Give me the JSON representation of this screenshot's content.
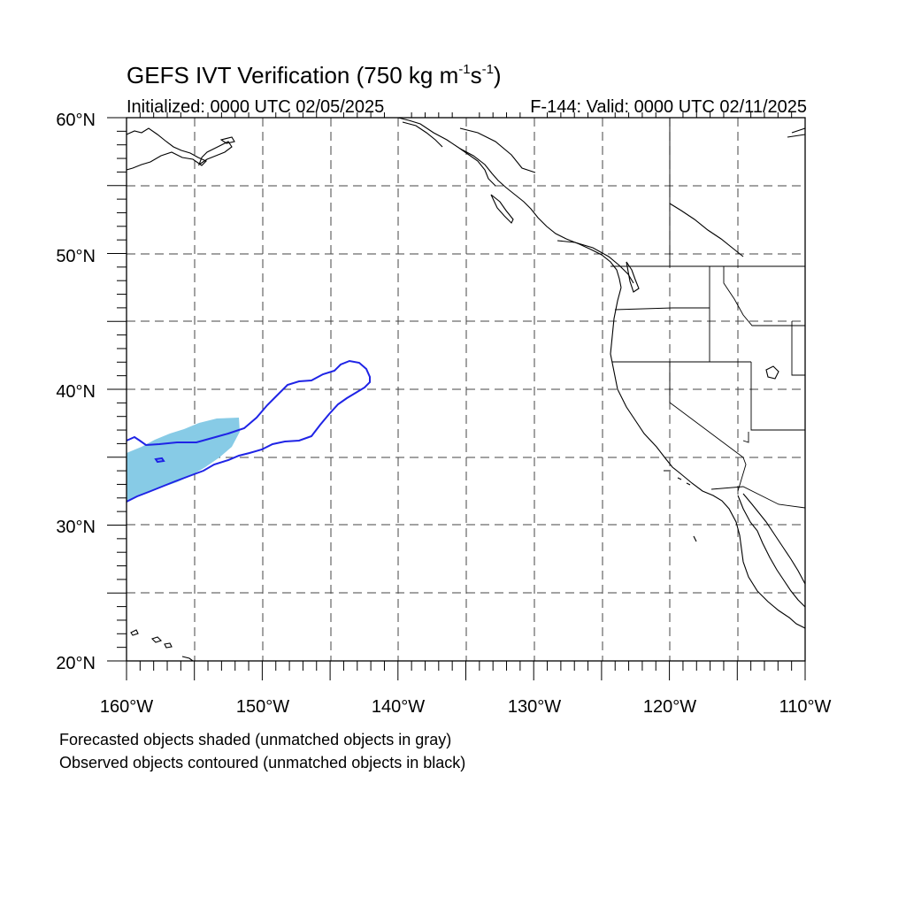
{
  "header": {
    "title_main": "GEFS IVT Verification (750 kg m",
    "title_sup1": "-1",
    "title_mid": "s",
    "title_sup2": "-1",
    "title_end": ")",
    "initialized": "Initialized: 0000 UTC 02/05/2025",
    "valid": "F-144: Valid: 0000 UTC 02/11/2025"
  },
  "map": {
    "lon_range": [
      -160,
      -110
    ],
    "lat_range": [
      20,
      60
    ],
    "lat_labels": [
      "60°N",
      "50°N",
      "40°N",
      "30°N",
      "20°N"
    ],
    "lon_labels": [
      "160°W",
      "150°W",
      "140°W",
      "130°W",
      "120°W",
      "110°W"
    ],
    "colors": {
      "forecast_fill": "#87cbe6",
      "observed_contour": "#1f24e6",
      "coastline": "#000000",
      "grid": "#444444"
    }
  },
  "footer": {
    "line1": "Forecasted objects shaded (unmatched objects in gray)",
    "line2": "Observed objects contoured (unmatched objects in black)"
  }
}
